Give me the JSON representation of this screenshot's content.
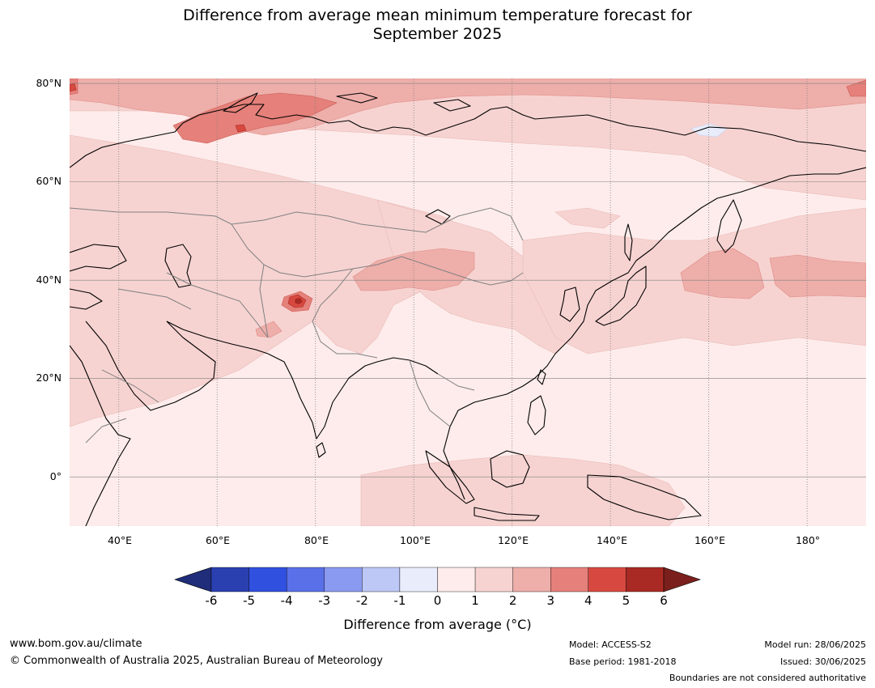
{
  "title": {
    "line1": "Difference from average mean minimum temperature forecast for",
    "line2": "September 2025"
  },
  "map": {
    "lat_labels": [
      "80°N",
      "60°N",
      "40°N",
      "20°N",
      "0°"
    ],
    "lon_labels": [
      "40°E",
      "60°E",
      "80°E",
      "100°E",
      "120°E",
      "140°E",
      "160°E",
      "180°"
    ],
    "lat_values": [
      80,
      60,
      40,
      20,
      0
    ],
    "lon_values": [
      40,
      60,
      80,
      100,
      120,
      140,
      160,
      180
    ],
    "extent": {
      "lon_min": 30,
      "lon_max": 192,
      "lat_min": -10,
      "lat_max": 81
    },
    "colors": {
      "land_line": "#000000",
      "border_line": "#808080",
      "grid_line": "#808080"
    }
  },
  "colorbar": {
    "ticks": [
      "-6",
      "-5",
      "-4",
      "-3",
      "-2",
      "-1",
      "0",
      "1",
      "2",
      "3",
      "4",
      "5",
      "6"
    ],
    "colors": [
      "#1f2d7a",
      "#2a3fb0",
      "#3050e0",
      "#5a70e8",
      "#8a9af0",
      "#bec8f6",
      "#e8ecfb",
      "#fdeceb",
      "#f6d3d1",
      "#eeaeaa",
      "#e5807a",
      "#d74940",
      "#a92a24",
      "#7a1f1c"
    ],
    "label": "Difference from average ($^\\circ$C)",
    "label_display": "Difference from average (°C)"
  },
  "footer": {
    "website": "www.bom.gov.au/climate",
    "copyright": "© Commonwealth of Australia 2025, Australian Bureau of Meteorology",
    "model": "Model: ACCESS-S2",
    "base_period": "Base period: 1981-2018",
    "model_run": "Model run: 28/06/2025",
    "issued": "Issued: 30/06/2025",
    "disclaimer": "Boundaries are not considered authoritative"
  }
}
